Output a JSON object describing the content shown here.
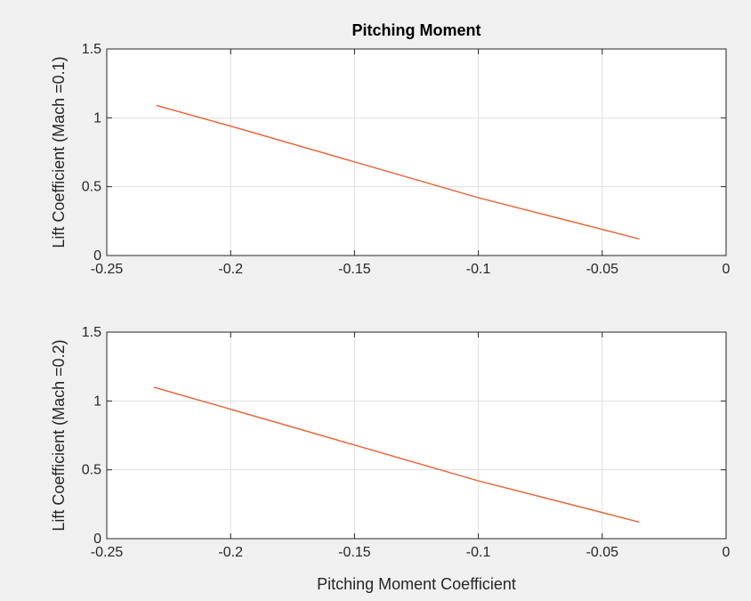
{
  "figure": {
    "background": "#f0f0f0",
    "axes_background": "#ffffff",
    "grid_color": "#dfdfdf",
    "axis_color": "#262626",
    "line_color": "#e8683e"
  },
  "chart_data": [
    {
      "type": "line",
      "title": "Pitching Moment",
      "xlabel": "",
      "ylabel": "Lift Coefficient (Mach =0.1)",
      "xlim": [
        -0.25,
        0
      ],
      "ylim": [
        0,
        1.5
      ],
      "xticks": [
        -0.25,
        -0.2,
        -0.15,
        -0.1,
        -0.05,
        0
      ],
      "xtick_labels": [
        "-0.25",
        "-0.2",
        "-0.15",
        "-0.1",
        "-0.05",
        "0"
      ],
      "yticks": [
        0,
        0.5,
        1,
        1.5
      ],
      "ytick_labels": [
        "0",
        "0.5",
        "1",
        "1.5"
      ],
      "grid": true,
      "series": [
        {
          "color": "#e8683e",
          "x": [
            -0.23,
            -0.2,
            -0.15,
            -0.1,
            -0.05,
            -0.035
          ],
          "y": [
            1.09,
            0.94,
            0.68,
            0.42,
            0.19,
            0.12
          ]
        }
      ]
    },
    {
      "type": "line",
      "title": "",
      "xlabel": "Pitching Moment Coefficient",
      "ylabel": "Lift Coefficient (Mach =0.2)",
      "xlim": [
        -0.25,
        0
      ],
      "ylim": [
        0,
        1.5
      ],
      "xticks": [
        -0.25,
        -0.2,
        -0.15,
        -0.1,
        -0.05,
        0
      ],
      "xtick_labels": [
        "-0.25",
        "-0.2",
        "-0.15",
        "-0.1",
        "-0.05",
        "0"
      ],
      "yticks": [
        0,
        0.5,
        1,
        1.5
      ],
      "ytick_labels": [
        "0",
        "0.5",
        "1",
        "1.5"
      ],
      "grid": true,
      "series": [
        {
          "color": "#e8683e",
          "x": [
            -0.231,
            -0.2,
            -0.15,
            -0.1,
            -0.05,
            -0.035
          ],
          "y": [
            1.1,
            0.94,
            0.68,
            0.42,
            0.19,
            0.12
          ]
        }
      ]
    }
  ]
}
